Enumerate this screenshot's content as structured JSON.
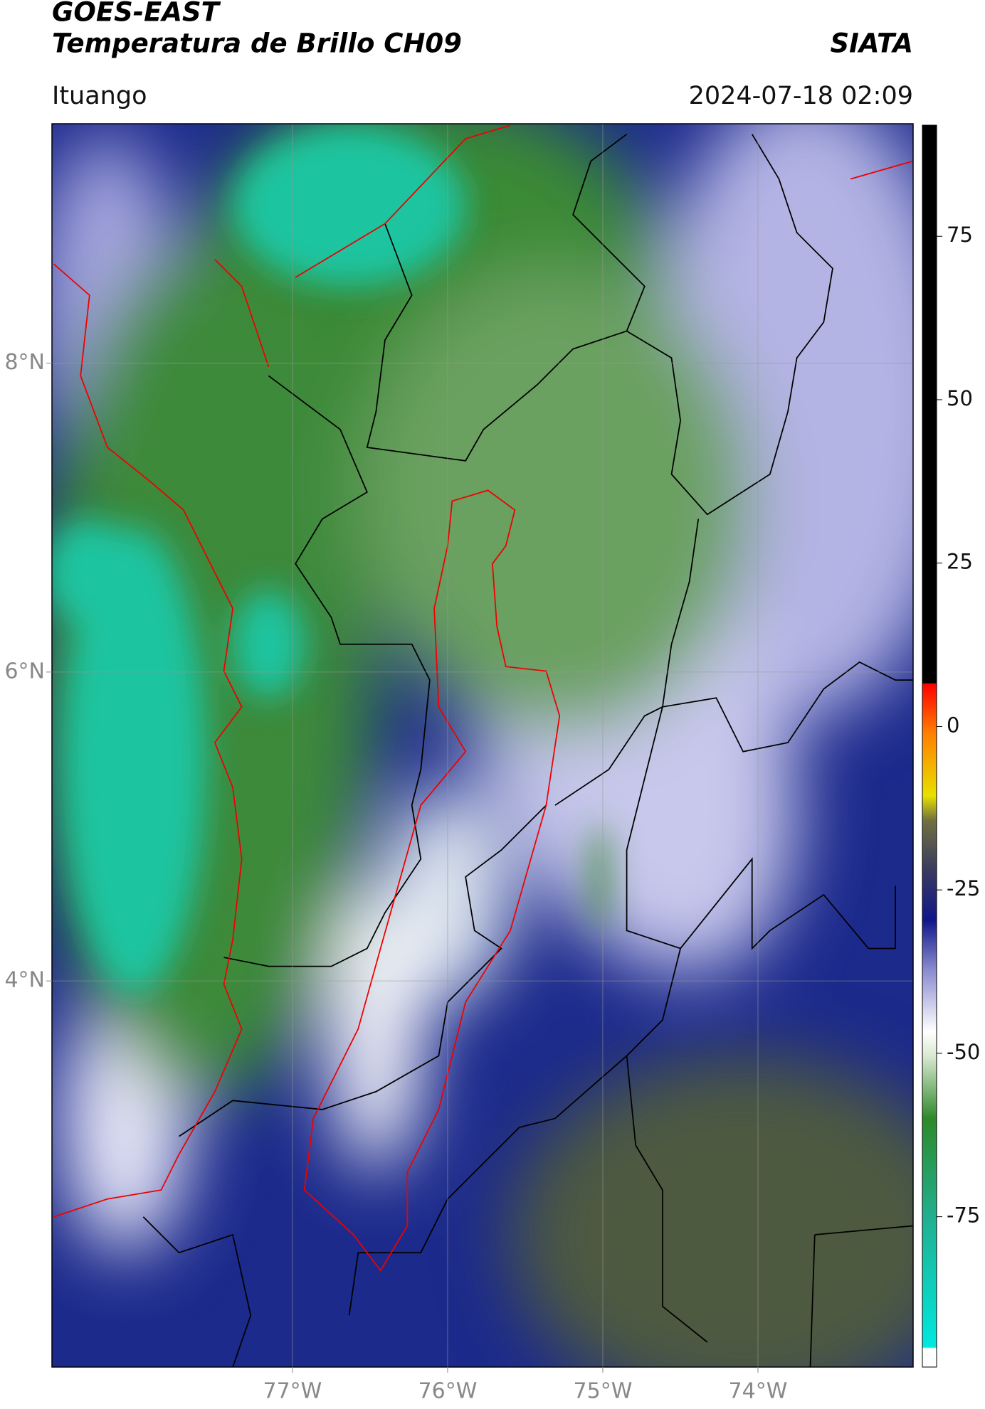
{
  "header": {
    "title": "GOES-EAST",
    "subtitle": "Temperatura de Brillo CH09",
    "agency": "SIATA",
    "location": "Ituango",
    "datetime": "2024-07-18 02:09"
  },
  "map": {
    "xlim": [
      -78.55,
      -73.0
    ],
    "ylim": [
      1.5,
      9.55
    ],
    "xticks": [
      {
        "value": -77,
        "label": "77°W"
      },
      {
        "value": -76,
        "label": "76°W"
      },
      {
        "value": -75,
        "label": "75°W"
      },
      {
        "value": -74,
        "label": "74°W"
      }
    ],
    "yticks": [
      {
        "value": 4,
        "label": "4°N"
      },
      {
        "value": 6,
        "label": "6°N"
      },
      {
        "value": 8,
        "label": "8°N"
      }
    ],
    "grid": true
  },
  "colorbar": {
    "lim": [
      -98,
      92
    ],
    "ticks": [
      -75,
      -50,
      -25,
      0,
      25,
      50,
      75
    ]
  }
}
